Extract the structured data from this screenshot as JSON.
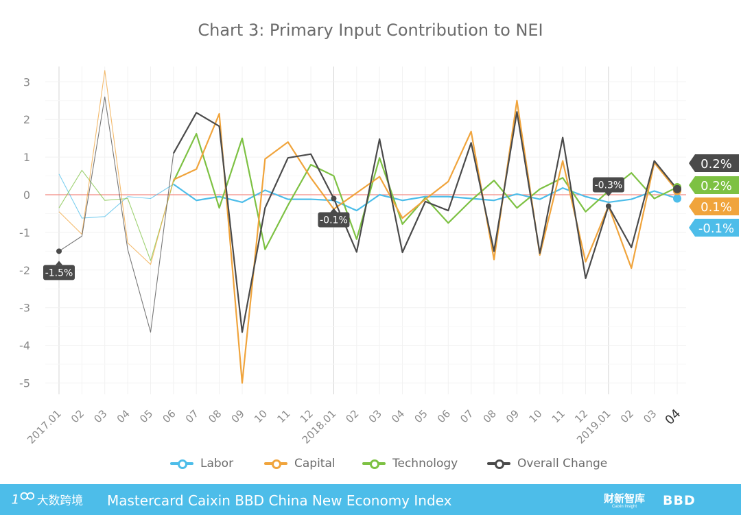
{
  "chart_data": {
    "type": "line",
    "title": "Chart 3: Primary Input Contribution to NEI",
    "xlabel": "",
    "ylabel": "",
    "ylim": [
      -5,
      3
    ],
    "yticks": [
      3,
      2,
      1,
      0,
      -1,
      -2,
      -3,
      -4,
      -5
    ],
    "x": [
      "2017.01",
      "02",
      "03",
      "04",
      "05",
      "06",
      "07",
      "08",
      "09",
      "10",
      "11",
      "12",
      "2018.01",
      "02",
      "03",
      "04",
      "05",
      "06",
      "07",
      "08",
      "09",
      "10",
      "11",
      "12",
      "2019.01",
      "02",
      "03",
      "04"
    ],
    "grid": true,
    "legend_position": "bottom",
    "series": [
      {
        "name": "Labor",
        "color": "#4dbde9",
        "values": [
          0.55,
          -0.62,
          -0.58,
          -0.05,
          -0.1,
          0.28,
          -0.15,
          -0.05,
          -0.2,
          0.12,
          -0.12,
          -0.12,
          -0.15,
          -0.42,
          0.0,
          -0.15,
          -0.05,
          -0.05,
          -0.1,
          -0.15,
          0.02,
          -0.12,
          0.18,
          -0.05,
          -0.2,
          -0.12,
          0.1,
          -0.1
        ]
      },
      {
        "name": "Capital",
        "color": "#f0a43c",
        "values": [
          -0.45,
          -1.05,
          3.3,
          -1.28,
          -1.85,
          0.4,
          0.68,
          2.15,
          -5.0,
          0.95,
          1.4,
          0.45,
          -0.38,
          0.05,
          0.48,
          -0.62,
          -0.12,
          0.35,
          1.68,
          -1.72,
          2.5,
          -1.6,
          0.9,
          -1.78,
          -0.3,
          -1.95,
          0.85,
          0.1
        ]
      },
      {
        "name": "Technology",
        "color": "#7dc143",
        "values": [
          -0.35,
          0.65,
          -0.15,
          -0.1,
          -1.75,
          0.35,
          1.62,
          -0.35,
          1.5,
          -1.45,
          -0.28,
          0.8,
          0.5,
          -1.18,
          0.98,
          -0.78,
          -0.08,
          -0.75,
          -0.15,
          0.38,
          -0.35,
          0.15,
          0.45,
          -0.45,
          0.1,
          0.58,
          -0.1,
          0.2
        ]
      },
      {
        "name": "Overall Change",
        "color": "#4a4a4a",
        "values": [
          -1.5,
          -1.1,
          2.6,
          -1.45,
          -3.65,
          1.1,
          2.18,
          1.82,
          -3.65,
          -0.35,
          0.98,
          1.08,
          -0.1,
          -1.52,
          1.48,
          -1.53,
          -0.18,
          -0.42,
          1.38,
          -1.5,
          2.2,
          -1.55,
          1.52,
          -2.22,
          -0.3,
          -1.4,
          0.9,
          0.15
        ]
      }
    ],
    "annotations": [
      {
        "x": "2017.01",
        "series": "Overall Change",
        "label": "-1.5%"
      },
      {
        "x": "2018.01",
        "series": "Overall Change",
        "label": "-0.1%"
      },
      {
        "x": "2019.01",
        "series": "Overall Change",
        "label": "-0.3%"
      }
    ],
    "end_labels": [
      {
        "series": "Overall Change",
        "label": "0.2%",
        "color": "#4a4a4a"
      },
      {
        "series": "Technology",
        "label": "0.2%",
        "color": "#7dc143"
      },
      {
        "series": "Capital",
        "label": "0.1%",
        "color": "#f0a43c"
      },
      {
        "series": "Labor",
        "label": "-0.1%",
        "color": "#4dbde9"
      }
    ]
  },
  "legend": {
    "labor": "Labor",
    "capital": "Capital",
    "technology": "Technology",
    "overall": "Overall Change"
  },
  "footer": {
    "logo_text": "大数跨境",
    "title": "Mastercard Caixin BBD China New Economy Index",
    "brand1": "财新智库",
    "brand1_sub": "Caixin Insight",
    "brand2": "BBD"
  }
}
